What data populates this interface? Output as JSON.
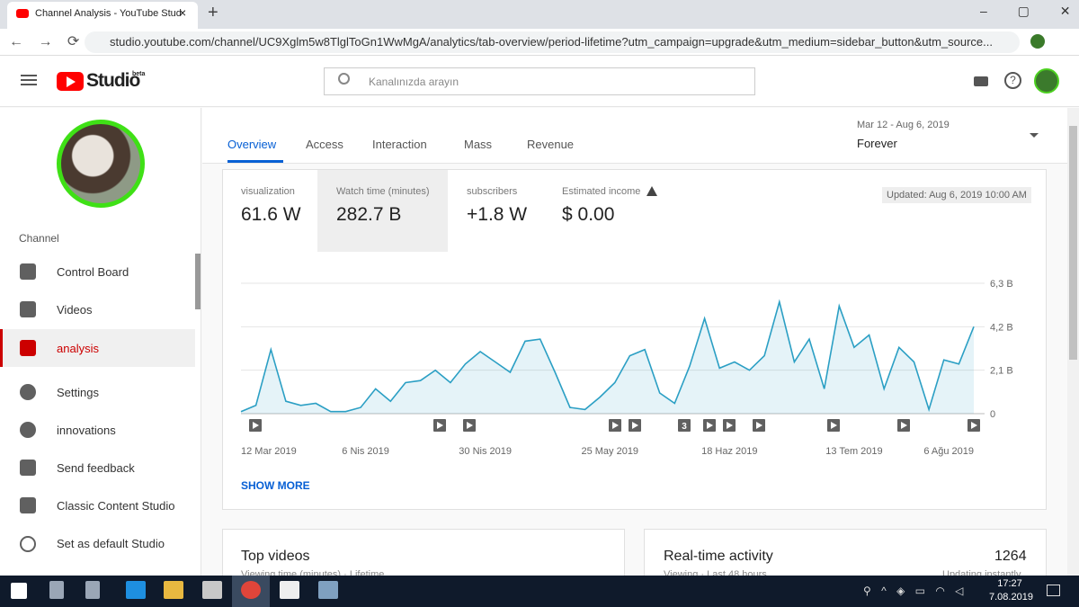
{
  "browser": {
    "tab_title": "Channel Analysis - YouTube Stud",
    "url": "studio.youtube.com/channel/UC9Xglm5w8TlglToGn1WwMgA/analytics/tab-overview/period-lifetime?utm_campaign=upgrade&utm_medium=sidebar_button&utm_source..."
  },
  "header": {
    "logo": "Studio",
    "badge": "beta",
    "search_placeholder": "Kanalınızda arayın"
  },
  "sidebar": {
    "section": "Channel",
    "items": [
      "Control Board",
      "Videos",
      "analysis",
      "Settings",
      "innovations",
      "Send feedback",
      "Classic Content Studio",
      "Set as default Studio"
    ]
  },
  "tabs": [
    "Overview",
    "Access",
    "Interaction",
    "Mass",
    "Revenue"
  ],
  "period": {
    "range": "Mar 12 - Aug 6, 2019",
    "label": "Forever"
  },
  "metrics": [
    {
      "label": "visualization",
      "value": "61.6 W"
    },
    {
      "label": "Watch time (minutes)",
      "value": "282.7 B"
    },
    {
      "label": "subscribers",
      "value": "+1.8 W"
    },
    {
      "label": "Estimated income",
      "value": "$ 0.00"
    }
  ],
  "updated": "Updated: Aug 6, 2019 10:00 AM",
  "chart_data": {
    "type": "area",
    "color": "#2b9fc4",
    "x": [
      "2019-03-12",
      "2019-03-15",
      "2019-03-18",
      "2019-03-21",
      "2019-03-24",
      "2019-03-27",
      "2019-03-30",
      "2019-04-02",
      "2019-04-05",
      "2019-04-08",
      "2019-04-11",
      "2019-04-14",
      "2019-04-17",
      "2019-04-20",
      "2019-04-23",
      "2019-04-26",
      "2019-04-29",
      "2019-05-02",
      "2019-05-05",
      "2019-05-08",
      "2019-05-11",
      "2019-05-14",
      "2019-05-17",
      "2019-05-20",
      "2019-05-23",
      "2019-05-26",
      "2019-05-29",
      "2019-06-01",
      "2019-06-04",
      "2019-06-07",
      "2019-06-10",
      "2019-06-13",
      "2019-06-16",
      "2019-06-19",
      "2019-06-22",
      "2019-06-25",
      "2019-06-28",
      "2019-07-01",
      "2019-07-04",
      "2019-07-07",
      "2019-07-10",
      "2019-07-13",
      "2019-07-16",
      "2019-07-19",
      "2019-07-22",
      "2019-07-25",
      "2019-07-28",
      "2019-07-31",
      "2019-08-03",
      "2019-08-06"
    ],
    "values": [
      0.1,
      0.4,
      3.1,
      0.6,
      0.4,
      0.5,
      0.1,
      0.1,
      0.3,
      1.2,
      0.6,
      1.5,
      1.6,
      2.1,
      1.5,
      2.4,
      3.0,
      2.5,
      2.0,
      3.5,
      3.6,
      2.0,
      0.3,
      0.2,
      0.8,
      1.5,
      2.8,
      3.1,
      1.0,
      0.5,
      2.3,
      4.6,
      2.2,
      2.5,
      2.1,
      2.8,
      5.4,
      2.5,
      3.6,
      1.2,
      5.2,
      3.2,
      3.8,
      1.2,
      3.2,
      2.5,
      0.2,
      2.6,
      2.4,
      4.2
    ],
    "xlim": [
      "2019-03-12",
      "2019-08-06"
    ],
    "xticks": [
      {
        "value": "2019-03-12",
        "label": "12 Mar 2019"
      },
      {
        "value": "2019-04-06",
        "label": "6 Nis 2019"
      },
      {
        "value": "2019-04-30",
        "label": "30 Nis 2019"
      },
      {
        "value": "2019-05-25",
        "label": "25 May 2019"
      },
      {
        "value": "2019-06-18",
        "label": "18 Haz 2019"
      },
      {
        "value": "2019-07-13",
        "label": "13 Tem 2019"
      },
      {
        "value": "2019-08-06",
        "label": "6 Ağu 2019"
      }
    ],
    "ylim": [
      0,
      6.3
    ],
    "yticks": [
      0,
      {
        "value": 2.1,
        "label": "2,1 B"
      },
      {
        "value": 4.2,
        "label": "4,2 B"
      },
      {
        "value": 6.3,
        "label": "6,3 B"
      }
    ],
    "grid": true,
    "annotation": "3"
  },
  "show_more": "SHOW MORE",
  "cards": {
    "top_videos": {
      "title": "Top videos",
      "subtitle": "Viewing time (minutes) · Lifetime"
    },
    "realtime": {
      "title": "Real-time activity",
      "count": "1264",
      "subtitle": "Viewing · Last 48 hours",
      "status": "Updating instantly"
    }
  },
  "taskbar": {
    "time": "17:27",
    "date": "7.08.2019"
  }
}
